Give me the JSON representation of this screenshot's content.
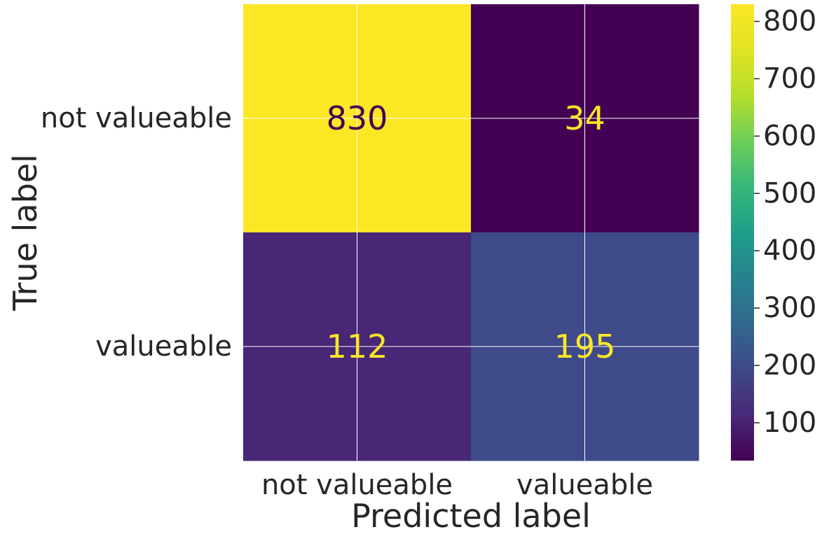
{
  "chart_data": {
    "type": "heatmap",
    "title": "",
    "xlabel": "Predicted label",
    "ylabel": "True label",
    "x_categories": [
      "not valueable",
      "valueable"
    ],
    "y_categories": [
      "not valueable",
      "valueable"
    ],
    "values": [
      [
        830,
        34
      ],
      [
        112,
        195
      ]
    ],
    "colormap": "viridis",
    "grid": true,
    "colorbar": {
      "vmin": 34,
      "vmax": 830,
      "ticks": [
        100,
        200,
        300,
        400,
        500,
        600,
        700,
        800
      ],
      "tick_labels": [
        "100",
        "200",
        "300",
        "400",
        "500",
        "600",
        "700",
        "800"
      ]
    }
  },
  "colors": {
    "text": "#262626",
    "grid": "#ffffff",
    "viridis_low": "#440154",
    "viridis_high": "#fde725"
  }
}
